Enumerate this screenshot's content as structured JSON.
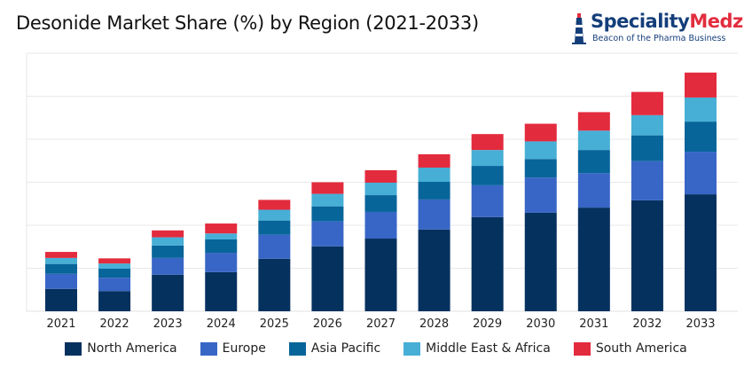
{
  "chart_data": {
    "type": "bar",
    "stacked": true,
    "title": "Desonide Market Share (%) by Region (2021-2033)",
    "xlabel": "",
    "ylabel": "",
    "ylim": [
      0,
      60
    ],
    "grid": true,
    "y_tick_labels_shown": false,
    "legend_position": "bottom",
    "categories": [
      "2021",
      "2022",
      "2023",
      "2024",
      "2025",
      "2026",
      "2027",
      "2028",
      "2029",
      "2030",
      "2031",
      "2032",
      "2033"
    ],
    "series": [
      {
        "name": "North America",
        "color": "#05315f",
        "values": [
          5.2,
          4.7,
          8.5,
          9.1,
          12.2,
          15.1,
          16.9,
          19.0,
          21.9,
          22.9,
          24.1,
          25.8,
          27.2
        ]
      },
      {
        "name": "Europe",
        "color": "#3866c6",
        "values": [
          3.5,
          3.1,
          3.9,
          4.5,
          5.6,
          5.8,
          6.2,
          7.0,
          7.4,
          8.2,
          8.0,
          9.1,
          9.9
        ]
      },
      {
        "name": "Asia Pacific",
        "color": "#07659a",
        "values": [
          2.3,
          2.1,
          2.9,
          3.1,
          3.3,
          3.5,
          3.9,
          4.1,
          4.5,
          4.3,
          5.4,
          6.0,
          7.0
        ]
      },
      {
        "name": "Middle East & Africa",
        "color": "#47afd6",
        "values": [
          1.4,
          1.2,
          1.9,
          1.4,
          2.5,
          2.9,
          2.9,
          3.3,
          3.7,
          4.1,
          4.5,
          4.7,
          5.6
        ]
      },
      {
        "name": "South America",
        "color": "#e32b3e",
        "values": [
          1.4,
          1.2,
          1.6,
          2.3,
          2.3,
          2.7,
          2.9,
          3.1,
          3.7,
          4.1,
          4.3,
          5.4,
          5.8
        ]
      }
    ]
  },
  "logo": {
    "name_part1": "Speciality",
    "name_part2": "Medz",
    "tagline": "Beacon of the Pharma Business"
  }
}
